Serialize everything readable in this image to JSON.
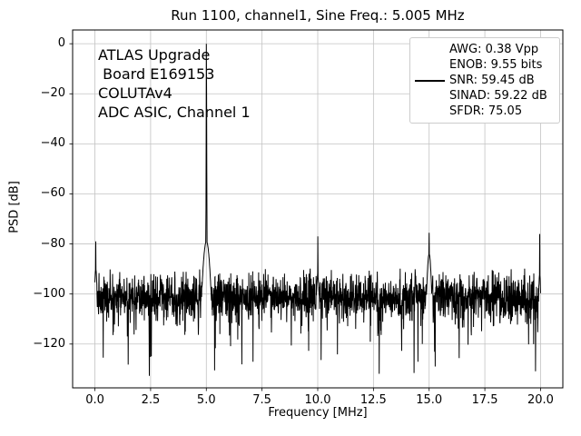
{
  "title": "Run 1100, channel1, Sine Freq.: 5.005 MHz",
  "annotation": {
    "lines": [
      "ATLAS Upgrade",
      " Board E169153",
      "COLUTAv4",
      "ADC ASIC, Channel 1"
    ]
  },
  "legend": {
    "entries": [
      {
        "label": "AWG: 0.38 Vpp",
        "has_line": false
      },
      {
        "label": "ENOB: 9.55 bits",
        "has_line": false
      },
      {
        "label": "SNR: 59.45 dB",
        "has_line": true
      },
      {
        "label": "SINAD: 59.22 dB",
        "has_line": false
      },
      {
        "label": "SFDR: 75.05",
        "has_line": false
      }
    ]
  },
  "chart_data": {
    "type": "line",
    "title": "Run 1100, channel1, Sine Freq.: 5.005 MHz",
    "xlabel": "Frequency [MHz]",
    "ylabel": "PSD [dB]",
    "xlim": [
      -1.0,
      21.0
    ],
    "ylim": [
      -137.5,
      5.5
    ],
    "xticks": [
      0.0,
      2.5,
      5.0,
      7.5,
      10.0,
      12.5,
      15.0,
      17.5,
      20.0
    ],
    "xtick_labels": [
      "0.0",
      "2.5",
      "5.0",
      "7.5",
      "10.0",
      "12.5",
      "15.0",
      "17.5",
      "20.0"
    ],
    "yticks": [
      0,
      -20,
      -40,
      -60,
      -80,
      -100,
      -120
    ],
    "ytick_labels": [
      "0",
      "−20",
      "−40",
      "−60",
      "−80",
      "−100",
      "−120"
    ],
    "grid": true,
    "grid_color": "#c3c3c3",
    "line_color": "#000000",
    "series": [
      {
        "name": "SNR: 59.45 dB",
        "color": "#000000"
      }
    ],
    "freq_range_mhz": [
      0,
      20
    ],
    "n_bins": 2048,
    "noise_floor": {
      "mean_db": -101,
      "sigma_db": 4.5,
      "max_db": -89.5,
      "min_db": -133.5
    },
    "spurs": [
      {
        "freq": 0.04,
        "level_db": -79,
        "skirt_db": -90,
        "skirt_width_mhz": 0.06
      },
      {
        "freq": 5.005,
        "level_db": 0,
        "skirt_db": -79,
        "skirt_width_mhz": 0.16
      },
      {
        "freq": 10.0,
        "level_db": -77,
        "skirt_db": -93,
        "skirt_width_mhz": 0.08
      },
      {
        "freq": 15.0,
        "level_db": -75.5,
        "skirt_db": -84,
        "skirt_width_mhz": 0.1
      },
      {
        "freq": 19.96,
        "level_db": -76,
        "skirt_db": -92,
        "skirt_width_mhz": 0.05
      }
    ]
  }
}
